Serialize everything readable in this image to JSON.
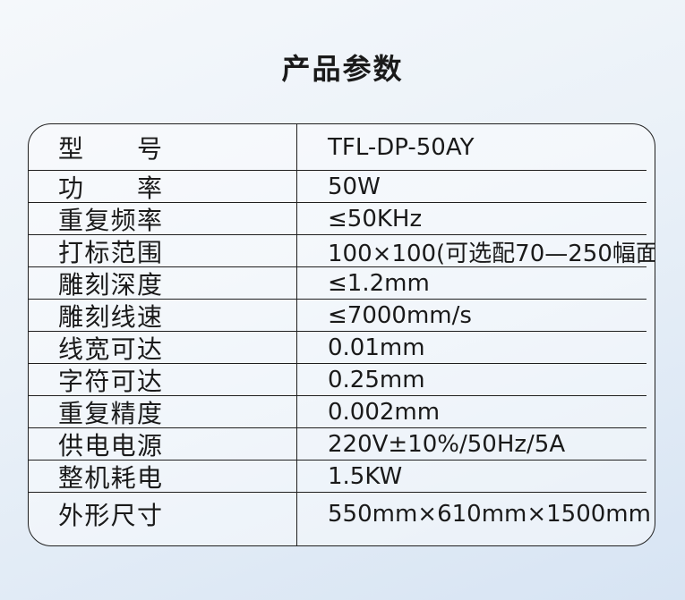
{
  "title": "产品参数",
  "table": {
    "rows": [
      {
        "label": "型号",
        "value": "TFL-DP-50AY"
      },
      {
        "label": "功率",
        "value": "50W"
      },
      {
        "label": "重复频率",
        "value": "≤50KHz"
      },
      {
        "label": "打标范围",
        "value": "100×100(可选配70—250幅面"
      },
      {
        "label": "雕刻深度",
        "value": "≤1.2mm"
      },
      {
        "label": "雕刻线速",
        "value": "≤7000mm/s"
      },
      {
        "label": "线宽可达",
        "value": "0.01mm"
      },
      {
        "label": "字符可达",
        "value": "0.25mm"
      },
      {
        "label": "重复精度",
        "value": "0.002mm"
      },
      {
        "label": "供电电源",
        "value": "220V±10%/50Hz/5A"
      },
      {
        "label": "整机耗电",
        "value": "1.5KW"
      },
      {
        "label": "外形尺寸",
        "value": "550mm×610mm×1500mm"
      }
    ]
  },
  "colors": {
    "background_top": "#f5f8fb",
    "background_mid": "#eaf1f8",
    "background_bottom": "#d7e4f3",
    "line": "#1f1f1f",
    "text": "#1a1a1a"
  }
}
